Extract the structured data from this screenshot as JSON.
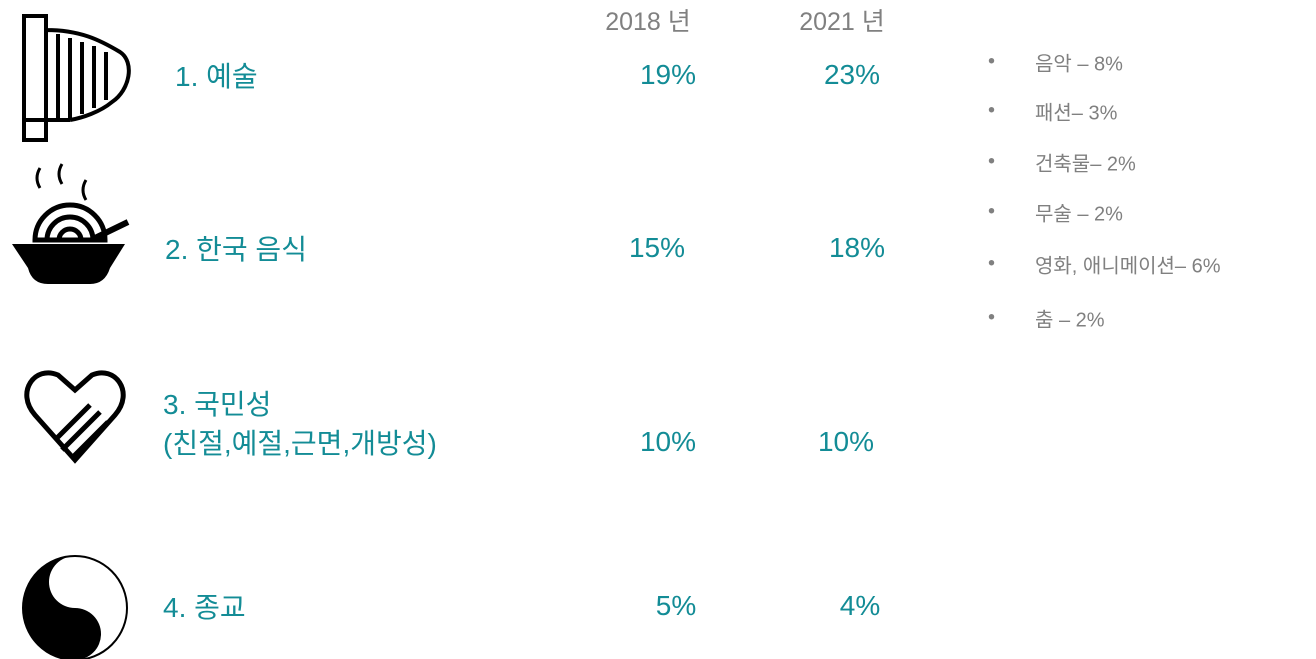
{
  "header": {
    "years": [
      "2018 년",
      "2021 년"
    ]
  },
  "rows": [
    {
      "label": [
        "1. 예술"
      ],
      "values": [
        "19%",
        "23%"
      ]
    },
    {
      "label": [
        "2. 한국 음식"
      ],
      "values": [
        "15%",
        "18%"
      ]
    },
    {
      "label": [
        "3. 국민성",
        "(친절,예절,근면,개방성)"
      ],
      "values": [
        "10%",
        "10%"
      ]
    },
    {
      "label": [
        "4. 종교"
      ],
      "values": [
        "5%",
        "4%"
      ]
    }
  ],
  "side_list": [
    "음악 – 8%",
    "패션– 3%",
    "건축물– 2%",
    "무술 – 2%",
    "영화, 애니메이션– 6%",
    "춤 – 2%"
  ]
}
